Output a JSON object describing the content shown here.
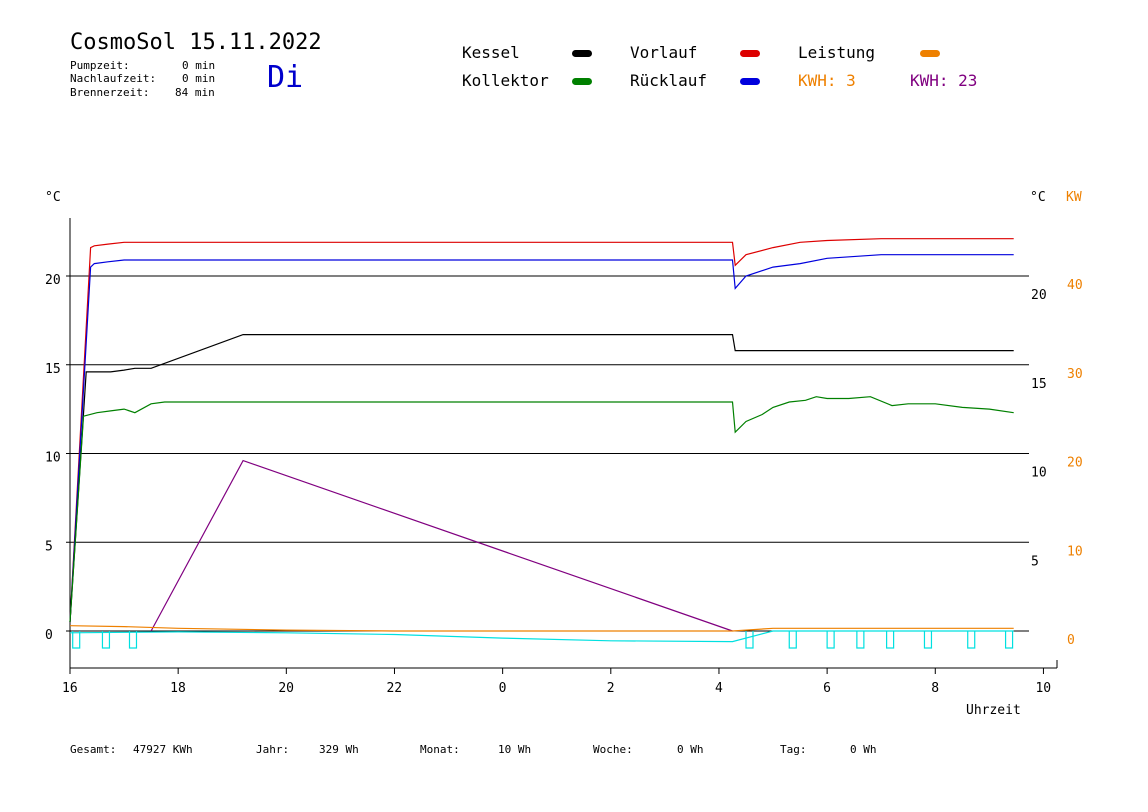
{
  "header": {
    "title": "CosmoSol 15.11.2022",
    "day": "Di",
    "stats": [
      {
        "label": "Pumpzeit:",
        "value": "0 min"
      },
      {
        "label": "Nachlaufzeit:",
        "value": "0 min"
      },
      {
        "label": "Brennerzeit:",
        "value": "84 min"
      }
    ]
  },
  "legend": {
    "kessel": {
      "label": "Kessel",
      "color": "#000000"
    },
    "vorlauf": {
      "label": "Vorlauf",
      "color": "#dd0000"
    },
    "leistung": {
      "label": "Leistung",
      "color": "#ee8000"
    },
    "kollektor": {
      "label": "Kollektor",
      "color": "#008000"
    },
    "ruecklauf": {
      "label": "Rücklauf",
      "color": "#0000dd"
    },
    "kwh_orange": {
      "label": "KWH: 3",
      "color": "#ee8000"
    },
    "kwh_purple": {
      "label": "KWH: 23",
      "color": "#800080"
    }
  },
  "footer": [
    {
      "label": "Gesamt:",
      "value": "47927 KWh"
    },
    {
      "label": "Jahr:",
      "value": "329 Wh"
    },
    {
      "label": "Monat:",
      "value": "10 Wh"
    },
    {
      "label": "Woche:",
      "value": "0 Wh"
    },
    {
      "label": "Tag:",
      "value": "0 Wh"
    }
  ],
  "chart_data": {
    "type": "line",
    "xlabel": "Uhrzeit",
    "ylabel_left": "°C",
    "ylabel_right": "°C",
    "ylabel_right2": "KW",
    "x_ticks": [
      "16",
      "18",
      "20",
      "22",
      "0",
      "2",
      "4",
      "6",
      "8",
      "10"
    ],
    "y_ticks_left": [
      "0",
      "5",
      "10",
      "15",
      "20"
    ],
    "y_ticks_right": [
      "5",
      "10",
      "15",
      "20"
    ],
    "y_ticks_kw": [
      "0",
      "10",
      "20",
      "30",
      "40"
    ],
    "xlim": [
      16,
      34
    ],
    "ylim": [
      -2,
      23.5
    ],
    "grid": true,
    "series": [
      {
        "name": "Vorlauf",
        "color": "#dd0000",
        "x": [
          16,
          16.38,
          16.45,
          16.7,
          17,
          28.25,
          28.3,
          28.5,
          29,
          29.5,
          30,
          31,
          33.45
        ],
        "y": [
          0.5,
          21.6,
          21.7,
          21.8,
          21.9,
          21.9,
          20.6,
          21.2,
          21.6,
          21.9,
          22.0,
          22.1,
          22.1
        ]
      },
      {
        "name": "Rücklauf",
        "color": "#0000dd",
        "x": [
          16,
          16.38,
          16.45,
          16.7,
          17,
          28.25,
          28.3,
          28.5,
          29,
          29.5,
          30,
          31,
          33.45
        ],
        "y": [
          0.5,
          20.5,
          20.7,
          20.8,
          20.9,
          20.9,
          19.3,
          20.0,
          20.5,
          20.7,
          21.0,
          21.2,
          21.2
        ]
      },
      {
        "name": "Kessel",
        "color": "#000000",
        "x": [
          16,
          16.3,
          16.75,
          17,
          17.2,
          17.5,
          19.2,
          28.25,
          28.3,
          33.45
        ],
        "y": [
          0.5,
          14.6,
          14.6,
          14.7,
          14.8,
          14.8,
          16.7,
          16.7,
          15.8,
          15.8
        ],
        "segments_only": true
      },
      {
        "name": "Kollektor",
        "color": "#008000",
        "x": [
          16,
          16.25,
          16.5,
          16.75,
          17,
          17.2,
          17.5,
          17.75,
          18,
          28.25,
          28.3,
          28.5,
          28.8,
          29,
          29.3,
          29.6,
          29.8,
          30,
          30.4,
          30.8,
          31.2,
          31.5,
          32,
          32.5,
          33,
          33.45
        ],
        "y": [
          0.5,
          12.1,
          12.3,
          12.4,
          12.5,
          12.3,
          12.8,
          12.9,
          12.9,
          12.9,
          11.2,
          11.8,
          12.2,
          12.6,
          12.9,
          13.0,
          13.2,
          13.1,
          13.1,
          13.2,
          12.7,
          12.8,
          12.8,
          12.6,
          12.5,
          12.3
        ]
      },
      {
        "name": "KWH: 23",
        "color": "#800080",
        "x": [
          17.5,
          19.2,
          28.25
        ],
        "y": [
          0,
          9.6,
          0
        ]
      },
      {
        "name": "KWH: 3",
        "color": "#ee8000",
        "x": [
          16,
          17,
          18,
          20,
          22,
          24,
          26,
          28.25,
          29,
          30,
          32,
          33.45
        ],
        "y": [
          0.3,
          0.25,
          0.15,
          0.05,
          0.0,
          0.0,
          0.0,
          0.0,
          0.15,
          0.15,
          0.15,
          0.15
        ]
      },
      {
        "name": "Pumpe",
        "color": "#00e0e0",
        "x": [
          16,
          18,
          20,
          22,
          24,
          26,
          28.25,
          29,
          30,
          31,
          32,
          33.45
        ],
        "y": [
          -0.1,
          -0.05,
          -0.1,
          -0.2,
          -0.4,
          -0.55,
          -0.6,
          0,
          0,
          0,
          0,
          0
        ]
      }
    ]
  }
}
